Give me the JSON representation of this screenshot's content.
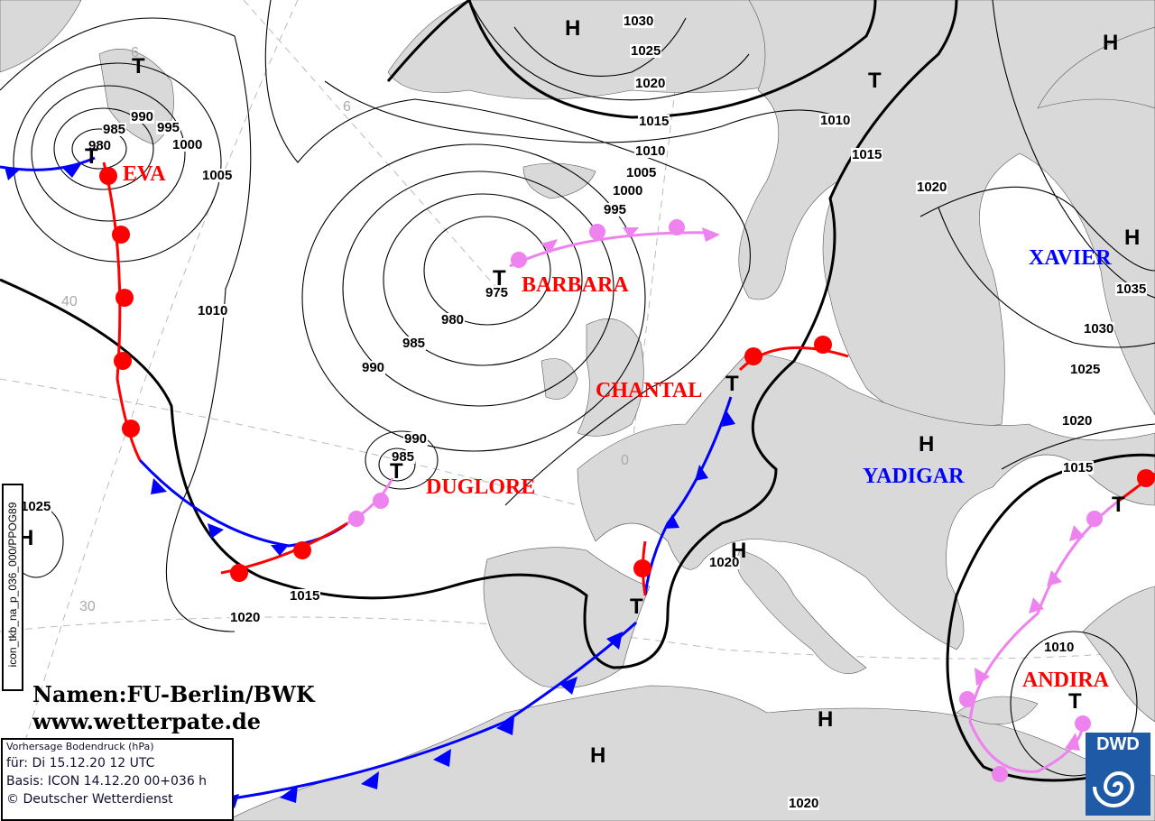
{
  "map": {
    "grid_labels": [
      "6",
      "6",
      "40",
      "30",
      "0"
    ],
    "isobar_labels": [
      "990",
      "985",
      "980",
      "995",
      "1000",
      "1005",
      "1010",
      "1015",
      "1020",
      "1025",
      "1030",
      "1010",
      "1015",
      "1020",
      "975",
      "980",
      "985",
      "990",
      "995",
      "1000",
      "1005",
      "1010",
      "990",
      "985",
      "1015",
      "1020",
      "1025",
      "1020",
      "1030",
      "1035",
      "1025",
      "1020",
      "1015",
      "1020",
      "1010",
      "1020"
    ],
    "pressure_centers": [
      {
        "type": "T"
      },
      {
        "type": "T"
      },
      {
        "type": "H"
      },
      {
        "type": "T"
      },
      {
        "type": "H"
      },
      {
        "type": "H"
      },
      {
        "type": "T"
      },
      {
        "type": "T"
      },
      {
        "type": "H"
      },
      {
        "type": "T"
      },
      {
        "type": "H"
      },
      {
        "type": "H"
      },
      {
        "type": "T"
      },
      {
        "type": "H"
      },
      {
        "type": "T"
      },
      {
        "type": "T"
      },
      {
        "type": "H"
      },
      {
        "type": "H"
      }
    ],
    "system_names": [
      {
        "name": "EVA",
        "color": "#ff0000"
      },
      {
        "name": "BARBARA",
        "color": "#ff0000"
      },
      {
        "name": "CHANTAL",
        "color": "#ff0000"
      },
      {
        "name": "DUGLORE",
        "color": "#ff0000"
      },
      {
        "name": "XAVIER",
        "color": "#0000ff"
      },
      {
        "name": "YADIGAR",
        "color": "#0000ff"
      },
      {
        "name": "ANDIRA",
        "color": "#ff0000"
      }
    ],
    "front_colors": {
      "cold": "#0000ff",
      "warm": "#ff0000",
      "occluded": "#ee82ee"
    }
  },
  "credits": {
    "names": "Namen:FU-Berlin/BWK",
    "website": "www.wetterpate.de"
  },
  "model_id": "icon_tkb_na_p_036_000/PPOG89",
  "info": {
    "title": "Vorhersage Bodendruck (hPa)",
    "valid": "für:  Di 15.12.20  12 UTC",
    "base": "Basis: ICON  14.12.20 00+036 h",
    "copyright": "© Deutscher Wetterdienst"
  },
  "logo": {
    "text": "DWD"
  }
}
